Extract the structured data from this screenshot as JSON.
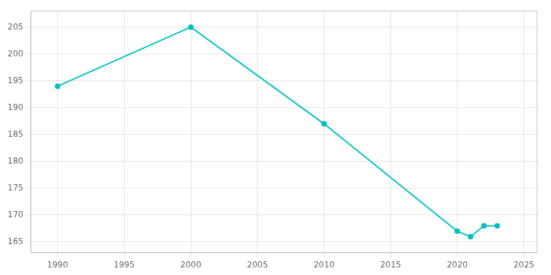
{
  "chart_data": {
    "type": "line",
    "x": [
      1990,
      2000,
      2010,
      2020,
      2021,
      2022,
      2023
    ],
    "values": [
      194,
      205,
      187,
      167,
      166,
      168,
      168
    ],
    "color": "#00c0c0",
    "marker": "circle",
    "xlim": [
      1988,
      2026
    ],
    "ylim": [
      163,
      208
    ],
    "xticks": [
      1990,
      1995,
      2000,
      2005,
      2010,
      2015,
      2020,
      2025
    ],
    "yticks": [
      165,
      170,
      175,
      180,
      185,
      190,
      195,
      200,
      205
    ],
    "grid": true
  }
}
